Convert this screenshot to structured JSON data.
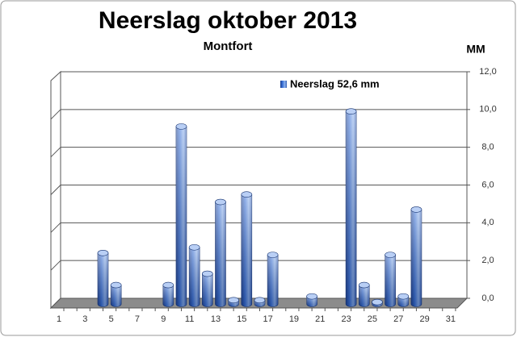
{
  "chart_data": {
    "type": "bar",
    "title": "Neerslag oktober 2013",
    "subtitle": "Montfort",
    "y_label": "MM",
    "categories": [
      1,
      null,
      3,
      null,
      5,
      null,
      7,
      null,
      9,
      null,
      11,
      null,
      13,
      null,
      15,
      null,
      17,
      null,
      19,
      null,
      21,
      null,
      23,
      null,
      25,
      null,
      27,
      null,
      29,
      null,
      31
    ],
    "series": [
      {
        "name": "Neerslag 52,6 mm",
        "color": "#2f62c8",
        "values": [
          0,
          0,
          0,
          2.7,
          1.0,
          0,
          0,
          0,
          1.0,
          9.4,
          3.0,
          1.6,
          5.4,
          0.2,
          5.8,
          0.2,
          2.6,
          0,
          0,
          0.4,
          0,
          0,
          10.2,
          1.0,
          0.1,
          2.6,
          0.4,
          5.0,
          0,
          0,
          0
        ]
      }
    ],
    "ylim": [
      0,
      12
    ],
    "yticks": [
      {
        "value": 0,
        "label": "0,0"
      },
      {
        "value": 2,
        "label": "2,0"
      },
      {
        "value": 4,
        "label": "4,0"
      },
      {
        "value": 6,
        "label": "6,0"
      },
      {
        "value": 8,
        "label": "8,0"
      },
      {
        "value": 10,
        "label": "10,0"
      },
      {
        "value": 12,
        "label": "12,0"
      }
    ],
    "grid": true
  }
}
